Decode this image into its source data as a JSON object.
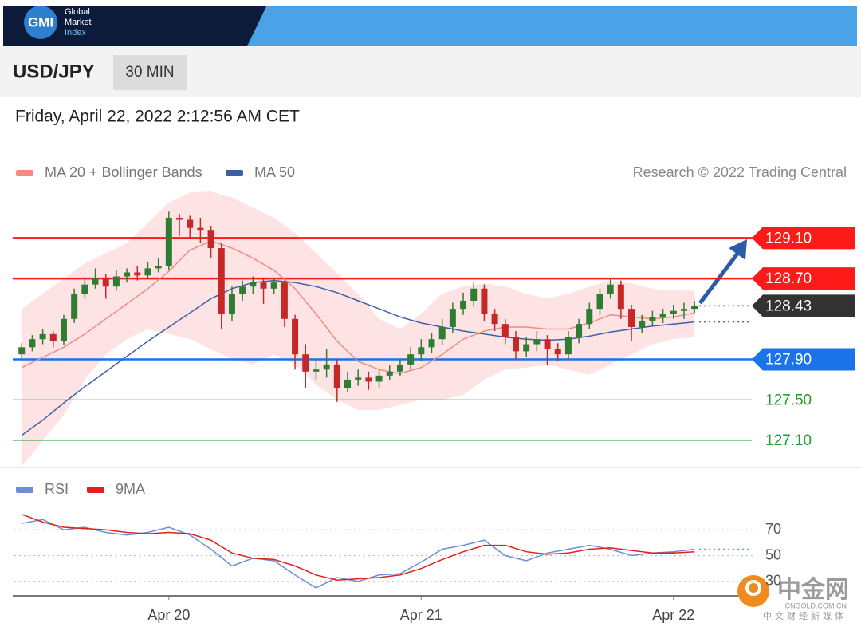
{
  "brand": {
    "logo": "GMI",
    "name": [
      "Global",
      "Market",
      "Index"
    ]
  },
  "symbol": "USD/JPY",
  "interval": "30 MIN",
  "timestamp": "Friday, April 22, 2022 2:12:56 AM CET",
  "watermark": {
    "name": "中金网",
    "url": "CNGOLD.COM.CN",
    "tagline": "中文财经新媒体"
  },
  "chart_data": [
    {
      "type": "candlestick",
      "source": "Research © 2022 Trading Central",
      "xlim": [
        9.3,
        79.6
      ],
      "ylim": [
        126.84,
        129.56
      ],
      "candles": {
        "up_color": "#2e7d32",
        "down_color": "#c62828",
        "x": [
          10,
          11,
          12,
          13,
          14,
          15,
          16,
          17,
          18,
          19,
          20,
          21,
          22,
          23,
          24,
          25,
          26,
          27,
          28,
          29,
          30,
          31,
          32,
          33,
          34,
          35,
          36,
          37,
          38,
          39,
          40,
          41,
          42,
          43,
          44,
          45,
          46,
          47,
          48,
          49,
          50,
          51,
          52,
          53,
          54,
          55,
          56,
          57,
          58,
          59,
          60,
          61,
          62,
          63,
          64,
          65,
          66,
          67,
          68,
          69,
          70,
          71,
          72,
          73,
          74
        ],
        "open": [
          127.95,
          128.02,
          128.1,
          128.15,
          128.08,
          128.3,
          128.55,
          128.64,
          128.7,
          128.62,
          128.72,
          128.76,
          128.73,
          128.8,
          128.82,
          129.3,
          129.28,
          129.2,
          129.18,
          129.0,
          128.35,
          128.55,
          128.62,
          128.66,
          128.6,
          128.66,
          128.3,
          127.95,
          127.78,
          127.8,
          127.85,
          127.62,
          127.7,
          127.72,
          127.68,
          127.74,
          127.78,
          127.85,
          127.95,
          128.02,
          128.1,
          128.22,
          128.4,
          128.48,
          128.6,
          128.35,
          128.25,
          128.12,
          127.98,
          128.05,
          128.1,
          128.0,
          127.95,
          128.12,
          128.25,
          128.4,
          128.55,
          128.64,
          128.4,
          128.22,
          128.28,
          128.32,
          128.35,
          128.38,
          128.4
        ],
        "high": [
          128.06,
          128.14,
          128.2,
          128.18,
          128.34,
          128.6,
          128.7,
          128.8,
          128.74,
          128.78,
          128.8,
          128.82,
          128.86,
          128.9,
          129.36,
          129.34,
          129.32,
          129.3,
          129.22,
          129.05,
          128.62,
          128.68,
          128.72,
          128.7,
          128.7,
          128.68,
          128.34,
          128.05,
          127.9,
          128.0,
          127.9,
          127.78,
          127.8,
          127.78,
          127.8,
          127.84,
          127.9,
          128.02,
          128.1,
          128.16,
          128.3,
          128.46,
          128.56,
          128.66,
          128.64,
          128.4,
          128.3,
          128.18,
          128.12,
          128.18,
          128.14,
          128.06,
          128.18,
          128.3,
          128.46,
          128.6,
          128.7,
          128.68,
          128.44,
          128.34,
          128.38,
          128.4,
          128.44,
          128.46,
          128.48
        ],
        "low": [
          127.9,
          127.98,
          128.05,
          128.02,
          128.04,
          128.26,
          128.5,
          128.6,
          128.5,
          128.58,
          128.66,
          128.68,
          128.7,
          128.76,
          128.78,
          129.12,
          129.1,
          129.05,
          128.9,
          128.2,
          128.28,
          128.48,
          128.55,
          128.45,
          128.55,
          128.22,
          127.8,
          127.62,
          127.7,
          127.72,
          127.48,
          127.58,
          127.64,
          127.6,
          127.62,
          127.7,
          127.74,
          127.8,
          127.88,
          127.96,
          128.04,
          128.16,
          128.34,
          128.42,
          128.28,
          128.18,
          128.05,
          127.9,
          127.92,
          127.98,
          127.84,
          127.88,
          127.9,
          128.06,
          128.2,
          128.34,
          128.5,
          128.3,
          128.08,
          128.16,
          128.24,
          128.26,
          128.3,
          128.3,
          128.36
        ],
        "close": [
          128.02,
          128.1,
          128.15,
          128.08,
          128.3,
          128.55,
          128.64,
          128.7,
          128.62,
          128.72,
          128.76,
          128.73,
          128.8,
          128.82,
          129.3,
          129.28,
          129.2,
          129.18,
          129.0,
          128.35,
          128.55,
          128.62,
          128.66,
          128.6,
          128.66,
          128.3,
          127.95,
          127.78,
          127.8,
          127.85,
          127.62,
          127.7,
          127.72,
          127.68,
          127.74,
          127.78,
          127.85,
          127.95,
          128.02,
          128.1,
          128.22,
          128.4,
          128.48,
          128.6,
          128.35,
          128.25,
          128.12,
          127.98,
          128.05,
          128.1,
          128.0,
          127.95,
          128.12,
          128.25,
          128.4,
          128.55,
          128.64,
          128.4,
          128.22,
          128.28,
          128.32,
          128.35,
          128.38,
          128.4,
          128.43
        ]
      },
      "x": [
        10,
        12,
        14,
        16,
        18,
        20,
        22,
        24,
        26,
        28,
        30,
        32,
        34,
        36,
        38,
        40,
        42,
        44,
        46,
        48,
        50,
        52,
        54,
        56,
        58,
        60,
        62,
        64,
        66,
        68,
        70,
        72,
        74
      ],
      "band_color": "#fde3e3",
      "series": [
        {
          "name": "MA 20 + Bollinger Bands",
          "color": "#f28b82",
          "values": [
            127.82,
            127.92,
            128.02,
            128.15,
            128.3,
            128.45,
            128.6,
            128.77,
            128.98,
            129.07,
            129.0,
            128.9,
            128.78,
            128.6,
            128.35,
            128.08,
            127.88,
            127.8,
            127.76,
            127.82,
            127.95,
            128.1,
            128.18,
            128.22,
            128.22,
            128.2,
            128.2,
            128.26,
            128.34,
            128.32,
            128.3,
            128.32,
            128.36
          ],
          "upper": [
            128.4,
            128.55,
            128.7,
            128.85,
            128.95,
            129.05,
            129.25,
            129.45,
            129.55,
            129.56,
            129.5,
            129.4,
            129.3,
            129.15,
            128.95,
            128.75,
            128.55,
            128.3,
            128.2,
            128.35,
            128.55,
            128.62,
            128.65,
            128.62,
            128.55,
            128.5,
            128.55,
            128.62,
            128.68,
            128.65,
            128.6,
            128.58,
            128.58
          ],
          "lower": [
            126.84,
            127.1,
            127.35,
            127.7,
            127.95,
            128.1,
            128.2,
            128.15,
            128.1,
            128.0,
            127.9,
            127.85,
            127.95,
            127.85,
            127.65,
            127.5,
            127.4,
            127.4,
            127.45,
            127.5,
            127.5,
            127.55,
            127.7,
            127.8,
            127.82,
            127.85,
            127.8,
            127.75,
            127.85,
            127.95,
            128.05,
            128.1,
            128.12
          ]
        },
        {
          "name": "MA 50",
          "color": "#3d5fa8",
          "values": [
            127.15,
            127.3,
            127.47,
            127.63,
            127.78,
            127.93,
            128.08,
            128.22,
            128.36,
            128.5,
            128.6,
            128.66,
            128.68,
            128.66,
            128.62,
            128.56,
            128.48,
            128.4,
            128.32,
            128.26,
            128.22,
            128.18,
            128.15,
            128.12,
            128.1,
            128.09,
            128.1,
            128.13,
            128.17,
            128.2,
            128.23,
            128.25,
            128.27
          ]
        }
      ],
      "levels": [
        {
          "value": 129.1,
          "label": "129.10",
          "color": "#ff1a1a",
          "box": true,
          "line": "solid"
        },
        {
          "value": 128.7,
          "label": "128.70",
          "color": "#ff1a1a",
          "box": true,
          "line": "solid"
        },
        {
          "value": 128.43,
          "label": "128.43",
          "color": "#333333",
          "box": true,
          "line": "dotted"
        },
        {
          "value": 127.9,
          "label": "127.90",
          "color": "#1a73e8",
          "box": true,
          "line": "solid"
        },
        {
          "value": 127.5,
          "label": "127.50",
          "color": "#1e9e2e",
          "box": false,
          "line": "thin"
        },
        {
          "value": 127.1,
          "label": "127.10",
          "color": "#1e9e2e",
          "box": false,
          "line": "thin"
        }
      ]
    },
    {
      "type": "line",
      "xlim": [
        9.3,
        79.6
      ],
      "ylim": [
        20,
        85
      ],
      "yticks": [
        30,
        50,
        70
      ],
      "xticks": [
        {
          "value": 24,
          "label": "Apr 20"
        },
        {
          "value": 48,
          "label": "Apr 21"
        },
        {
          "value": 72,
          "label": "Apr 22"
        }
      ],
      "x": [
        10,
        12,
        14,
        16,
        18,
        20,
        22,
        24,
        26,
        28,
        30,
        32,
        34,
        36,
        38,
        40,
        42,
        44,
        46,
        48,
        50,
        52,
        54,
        56,
        58,
        60,
        62,
        64,
        66,
        68,
        70,
        72,
        74
      ],
      "series": [
        {
          "name": "RSI",
          "color": "#6a8fd8",
          "values": [
            75,
            78,
            70,
            72,
            68,
            66,
            68,
            72,
            66,
            55,
            42,
            48,
            46,
            35,
            25,
            33,
            30,
            35,
            36,
            45,
            55,
            58,
            62,
            50,
            46,
            52,
            55,
            58,
            55,
            50,
            52,
            53,
            55
          ]
        },
        {
          "name": "9MA",
          "color": "#e02020",
          "values": [
            82,
            76,
            72,
            71,
            70,
            68,
            67,
            68,
            67,
            62,
            52,
            48,
            47,
            42,
            35,
            31,
            32,
            33,
            35,
            40,
            47,
            53,
            58,
            58,
            53,
            51,
            52,
            55,
            56,
            54,
            52,
            52,
            53
          ]
        }
      ]
    }
  ]
}
